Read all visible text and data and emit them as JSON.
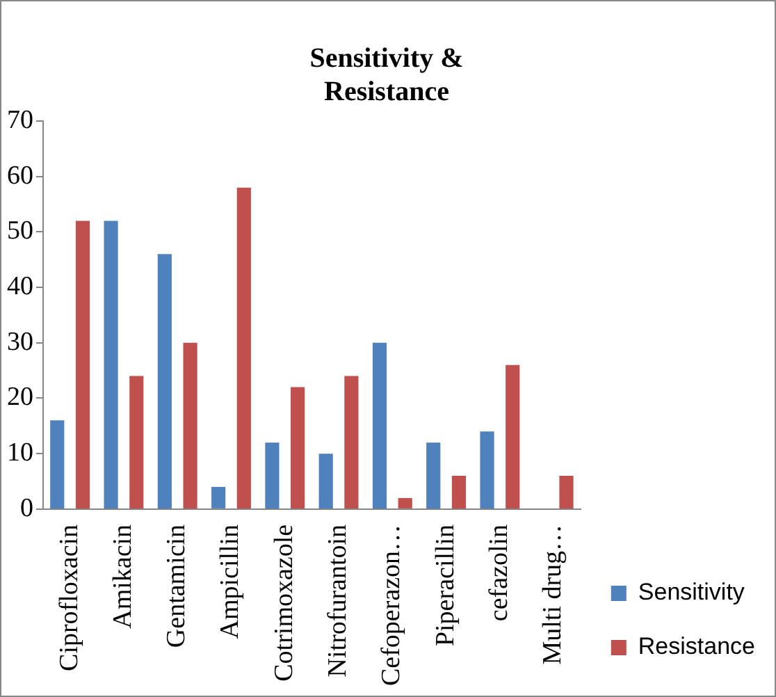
{
  "chart_data": {
    "type": "bar",
    "title": "Sensitivity & Resistance",
    "categories": [
      "Ciprofloxacin",
      "Amikacin",
      "Gentamicin",
      "Ampicillin",
      "Cotrimoxazole",
      "Nitrofurantoin",
      "Cefoperazon…",
      "Piperacillin",
      "cefazolin",
      "Multi drug…"
    ],
    "series": [
      {
        "name": "Sensitivity",
        "color": "#4f81bd",
        "values": [
          16,
          52,
          46,
          4,
          12,
          10,
          30,
          12,
          14,
          0
        ]
      },
      {
        "name": "Resistance",
        "color": "#c0504d",
        "values": [
          52,
          24,
          30,
          58,
          22,
          24,
          2,
          6,
          26,
          6
        ]
      }
    ],
    "ylim": [
      0,
      70
    ],
    "yticks": [
      0,
      10,
      20,
      30,
      40,
      50,
      60,
      70
    ],
    "grid": false,
    "legend": "bottom right"
  }
}
